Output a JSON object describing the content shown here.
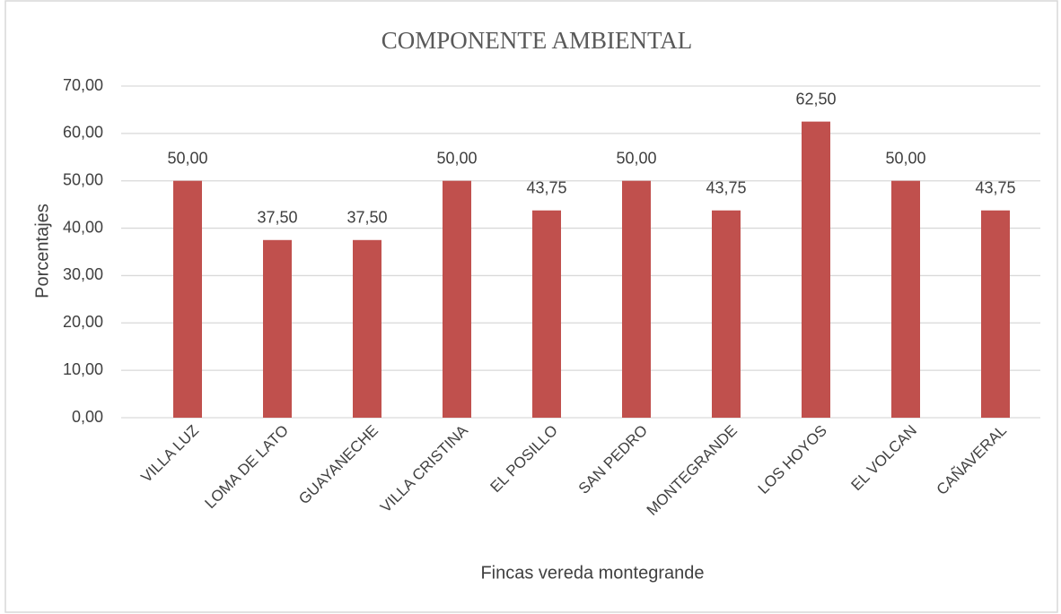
{
  "chart_data": {
    "type": "bar",
    "title": "COMPONENTE AMBIENTAL",
    "x_label": "Fincas vereda montegrande",
    "y_label": "Porcentajes",
    "categories": [
      "VILLA LUZ",
      "LOMA DE LATO",
      "GUAYANECHE",
      "VILLA CRISTINA",
      "EL POSILLO",
      "SAN PEDRO",
      "MONTEGRANDE",
      "LOS HOYOS",
      "EL VOLCAN",
      "CAÑAVERAL"
    ],
    "values": [
      50,
      37.5,
      37.5,
      50,
      43.75,
      50,
      43.75,
      62.5,
      50,
      43.75
    ],
    "value_labels": [
      "50,00",
      "37,50",
      "37,50",
      "50,00",
      "43,75",
      "50,00",
      "43,75",
      "62,50",
      "50,00",
      "43,75"
    ],
    "color": "#c0504d",
    "ylim": [
      0,
      70
    ],
    "yticks": [
      {
        "value": 0,
        "label": "0,00"
      },
      {
        "value": 10,
        "label": "10,00"
      },
      {
        "value": 20,
        "label": "20,00"
      },
      {
        "value": 30,
        "label": "30,00"
      },
      {
        "value": 40,
        "label": "40,00"
      },
      {
        "value": 50,
        "label": "50,00"
      },
      {
        "value": 60,
        "label": "60,00"
      },
      {
        "value": 70,
        "label": "70,00"
      }
    ],
    "grid": true
  }
}
